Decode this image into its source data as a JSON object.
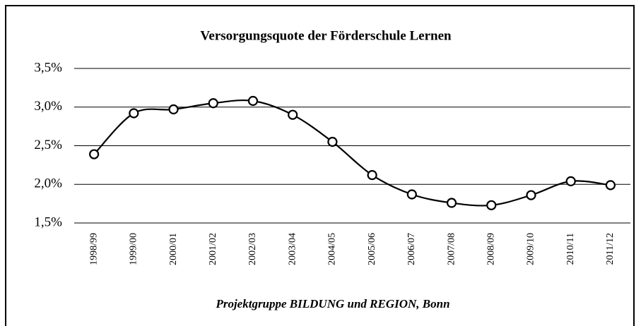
{
  "chart_data": {
    "type": "line",
    "title": "Versorgungsquote der Förderschule Lernen",
    "footer": "Projektgruppe BILDUNG und REGION, Bonn",
    "categories": [
      "1998/99",
      "1999/00",
      "2000/01",
      "2001/02",
      "2002/03",
      "2003/04",
      "2004/05",
      "2005/06",
      "2006/07",
      "2007/08",
      "2008/09",
      "2009/10",
      "2010/11",
      "2011/12"
    ],
    "series": [
      {
        "name": "Versorgungsquote",
        "color": "#000000",
        "values": [
          2.39,
          2.92,
          2.97,
          3.05,
          3.08,
          2.9,
          2.55,
          2.12,
          1.87,
          1.76,
          1.73,
          1.86,
          2.04,
          1.99
        ]
      }
    ],
    "ylim": [
      1.5,
      3.5
    ],
    "yticks": [
      {
        "value": 1.5,
        "label": "1,5%"
      },
      {
        "value": 2.0,
        "label": "2,0%"
      },
      {
        "value": 2.5,
        "label": "2,5%"
      },
      {
        "value": 3.0,
        "label": "3,0%"
      },
      {
        "value": 3.5,
        "label": "3,5%"
      }
    ],
    "grid": true
  }
}
